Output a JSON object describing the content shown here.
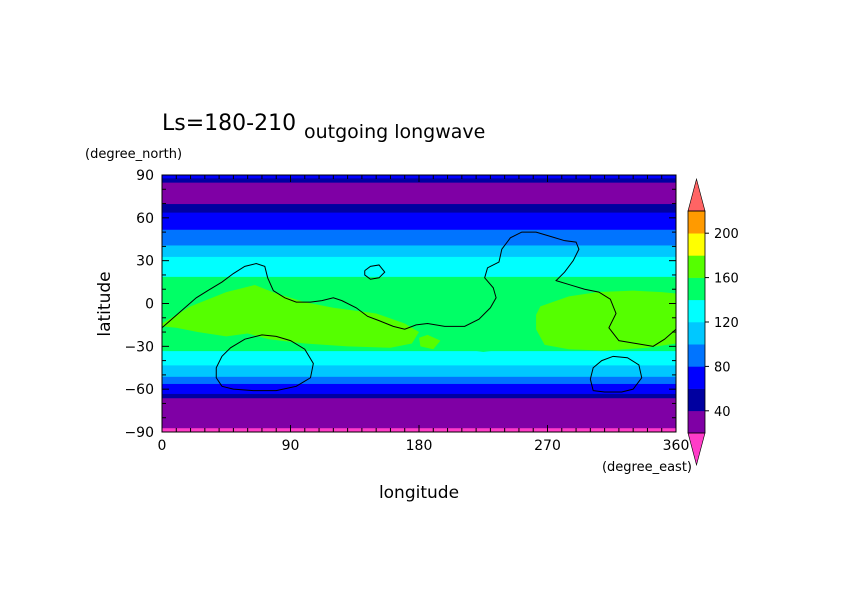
{
  "header": {
    "period_label": "Ls=180-210",
    "title": "outgoing longwave"
  },
  "chart_data": {
    "type": "heatmap",
    "title": "outgoing longwave",
    "subtitle": "Ls=180-210",
    "xlabel": "longitude",
    "ylabel": "latitude",
    "xunit": "(degree_east)",
    "yunit": "(degree_north)",
    "xlim": [
      0,
      360
    ],
    "ylim": [
      -90,
      90
    ],
    "xticks": [
      0,
      90,
      180,
      270,
      360
    ],
    "yticks": [
      90,
      60,
      30,
      0,
      -30,
      -60,
      -90
    ],
    "grid": false,
    "colorbar": {
      "placement": "right",
      "levels": [
        20,
        40,
        60,
        80,
        100,
        120,
        140,
        160,
        180,
        200,
        220
      ],
      "tick_labels": [
        40,
        80,
        120,
        160,
        200
      ],
      "colors": [
        "#7f00a5",
        "#0000a0",
        "#0000ff",
        "#0074ff",
        "#00c8ff",
        "#00ffff",
        "#00ff66",
        "#55ff00",
        "#ffff00",
        "#ff9a00",
        "#ff5a3a"
      ],
      "under_color": "#ff3cc8",
      "over_color": "#ff6464"
    },
    "bands": [
      {
        "lat_min": -90,
        "lat_max": -87,
        "level": "under"
      },
      {
        "lat_min": -87,
        "lat_max": -66,
        "level": 0
      },
      {
        "lat_min": -66,
        "lat_max": -63,
        "level": 1
      },
      {
        "lat_min": -63,
        "lat_max": -56,
        "level": 2
      },
      {
        "lat_min": -56,
        "lat_max": -51,
        "level": 3
      },
      {
        "lat_min": -51,
        "lat_max": -43,
        "level": 4
      },
      {
        "lat_min": -43,
        "lat_max": -33,
        "level": 5
      },
      {
        "lat_min": -33,
        "lat_max": 19,
        "level": 6
      },
      {
        "lat_min": 19,
        "lat_max": 33,
        "level": 5
      },
      {
        "lat_min": 33,
        "lat_max": 41,
        "level": 4
      },
      {
        "lat_min": 41,
        "lat_max": 52,
        "level": 3
      },
      {
        "lat_min": 52,
        "lat_max": 64,
        "level": 2
      },
      {
        "lat_min": 64,
        "lat_max": 70,
        "level": 1
      },
      {
        "lat_min": 70,
        "lat_max": 85,
        "level": 0
      },
      {
        "lat_min": 85,
        "lat_max": 88,
        "level": 1
      },
      {
        "lat_min": 88,
        "lat_max": 90,
        "level": 2
      }
    ],
    "regions": [
      {
        "level": 7,
        "points": [
          [
            0,
            -14
          ],
          [
            20,
            -2
          ],
          [
            45,
            8
          ],
          [
            65,
            13
          ],
          [
            80,
            7
          ],
          [
            100,
            1
          ],
          [
            120,
            -3
          ],
          [
            150,
            -7
          ],
          [
            170,
            -14
          ],
          [
            180,
            -20
          ],
          [
            175,
            -28
          ],
          [
            160,
            -31
          ],
          [
            130,
            -30
          ],
          [
            100,
            -28
          ],
          [
            75,
            -25
          ],
          [
            60,
            -21
          ],
          [
            45,
            -23
          ],
          [
            25,
            -20
          ],
          [
            10,
            -17
          ],
          [
            0,
            -16
          ]
        ]
      },
      {
        "level": 7,
        "points": [
          [
            180,
            -24
          ],
          [
            186,
            -22
          ],
          [
            195,
            -26
          ],
          [
            190,
            -32
          ],
          [
            181,
            -30
          ]
        ]
      },
      {
        "level": 7,
        "points": [
          [
            265,
            -2
          ],
          [
            285,
            5
          ],
          [
            305,
            8
          ],
          [
            330,
            9
          ],
          [
            350,
            8
          ],
          [
            360,
            7
          ],
          [
            360,
            -28
          ],
          [
            340,
            -31
          ],
          [
            310,
            -33
          ],
          [
            285,
            -32
          ],
          [
            268,
            -29
          ],
          [
            262,
            -18
          ],
          [
            262,
            -8
          ]
        ]
      },
      {
        "level": 6,
        "points": [
          [
            210,
            -27
          ],
          [
            232,
            -28
          ],
          [
            240,
            -32
          ],
          [
            225,
            -34
          ],
          [
            212,
            -32
          ]
        ]
      }
    ],
    "contours": [
      [
        [
          0,
          -17
        ],
        [
          8,
          -10
        ],
        [
          16,
          -3
        ],
        [
          24,
          4
        ],
        [
          32,
          9
        ],
        [
          42,
          15
        ],
        [
          50,
          21
        ],
        [
          58,
          26
        ],
        [
          66,
          28
        ],
        [
          72,
          26
        ],
        [
          74,
          18
        ],
        [
          78,
          9
        ],
        [
          86,
          4
        ],
        [
          94,
          1
        ],
        [
          104,
          1
        ],
        [
          112,
          2
        ],
        [
          120,
          4
        ],
        [
          126,
          2
        ],
        [
          136,
          -3
        ],
        [
          144,
          -9
        ],
        [
          152,
          -12
        ],
        [
          162,
          -16
        ],
        [
          170,
          -18
        ],
        [
          178,
          -15
        ],
        [
          186,
          -14
        ],
        [
          198,
          -16
        ],
        [
          212,
          -16
        ],
        [
          222,
          -11
        ],
        [
          230,
          -3
        ],
        [
          234,
          4
        ],
        [
          232,
          11
        ],
        [
          226,
          18
        ],
        [
          228,
          25
        ],
        [
          236,
          29
        ],
        [
          238,
          38
        ],
        [
          244,
          46
        ],
        [
          252,
          50
        ],
        [
          262,
          50
        ],
        [
          272,
          47
        ],
        [
          282,
          44
        ],
        [
          290,
          43
        ],
        [
          292,
          38
        ],
        [
          288,
          30
        ],
        [
          282,
          22
        ],
        [
          276,
          16
        ],
        [
          286,
          13
        ],
        [
          296,
          10
        ],
        [
          306,
          8
        ],
        [
          314,
          3
        ],
        [
          318,
          -7
        ],
        [
          313,
          -17
        ],
        [
          320,
          -26
        ],
        [
          332,
          -28
        ],
        [
          344,
          -30
        ],
        [
          352,
          -25
        ],
        [
          360,
          -18
        ]
      ],
      [
        [
          142,
          23
        ],
        [
          146,
          26
        ],
        [
          152,
          27
        ],
        [
          156,
          22
        ],
        [
          152,
          18
        ],
        [
          146,
          17
        ],
        [
          142,
          20
        ],
        [
          142,
          23
        ]
      ],
      [
        [
          42,
          -58
        ],
        [
          50,
          -60
        ],
        [
          64,
          -61
        ],
        [
          80,
          -61
        ],
        [
          94,
          -58
        ],
        [
          104,
          -52
        ],
        [
          106,
          -42
        ],
        [
          100,
          -32
        ],
        [
          90,
          -26
        ],
        [
          80,
          -23
        ],
        [
          70,
          -22
        ],
        [
          58,
          -25
        ],
        [
          48,
          -31
        ],
        [
          42,
          -37
        ],
        [
          38,
          -45
        ],
        [
          38,
          -52
        ],
        [
          42,
          -58
        ]
      ],
      [
        [
          302,
          -61
        ],
        [
          310,
          -62
        ],
        [
          322,
          -62
        ],
        [
          330,
          -60
        ],
        [
          336,
          -52
        ],
        [
          334,
          -43
        ],
        [
          326,
          -38
        ],
        [
          316,
          -37
        ],
        [
          308,
          -40
        ],
        [
          302,
          -45
        ],
        [
          300,
          -53
        ],
        [
          302,
          -61
        ]
      ]
    ]
  }
}
